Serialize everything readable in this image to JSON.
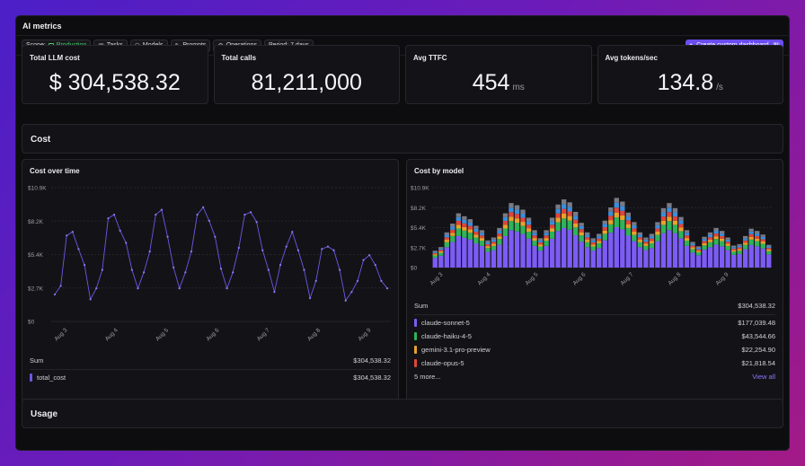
{
  "window": {
    "title": "AI metrics"
  },
  "toolbar": {
    "scope_label": "Scope:",
    "scope_value": "Production",
    "tasks": "Tasks",
    "models": "Models",
    "prompts": "Prompts",
    "operations": "Operations",
    "period": "Period: 7 days",
    "create_button": "Create custom dashboard",
    "create_shortcut": "N"
  },
  "stats": [
    {
      "label": "Total LLM cost",
      "value": "$ 304,538.32",
      "unit": ""
    },
    {
      "label": "Total calls",
      "value": "81,211,000",
      "unit": ""
    },
    {
      "label": "Avg TTFC",
      "value": "454",
      "unit": "ms"
    },
    {
      "label": "Avg tokens/sec",
      "value": "134.8",
      "unit": "/s"
    }
  ],
  "sections": {
    "cost": "Cost",
    "usage": "Usage"
  },
  "colors": {
    "sonnet": "#7c5cf5",
    "haiku": "#2fb35a",
    "gemini": "#e8a22b",
    "opus": "#e0453b",
    "other1": "#3a8ddc",
    "other2": "#7a7a86",
    "line": "#6b58e6"
  },
  "cost_over_time": {
    "title": "Cost over time",
    "sum_label": "Sum",
    "sum_value": "$304,538.32",
    "legend": [
      {
        "name": "total_cost",
        "value": "$304,538.32"
      }
    ]
  },
  "cost_by_model": {
    "title": "Cost by model",
    "sum_label": "Sum",
    "sum_value": "$304,538.32",
    "legend": [
      {
        "name": "claude-sonnet-5",
        "value": "$177,039.48",
        "color": "#7c5cf5"
      },
      {
        "name": "claude-haiku-4-5",
        "value": "$43,544.66",
        "color": "#2fb35a"
      },
      {
        "name": "gemini-3.1-pro-preview",
        "value": "$22,254.90",
        "color": "#e8a22b"
      },
      {
        "name": "claude-opus-5",
        "value": "$21,818.54",
        "color": "#e0453b"
      }
    ],
    "more": "5 more...",
    "view_all": "View all"
  },
  "chart_data": [
    {
      "type": "line",
      "title": "Cost over time",
      "yticks": [
        "$0",
        "$2.7K",
        "$5.4K",
        "$8.2K",
        "$10.9K"
      ],
      "ylim": [
        0,
        10900
      ],
      "xticks": [
        "Aug 3",
        "Aug 4",
        "Aug 5",
        "Aug 6",
        "Aug 7",
        "Aug 8",
        "Aug 9"
      ],
      "series": [
        {
          "name": "total_cost",
          "values": [
            2200,
            2900,
            7000,
            7300,
            5900,
            4600,
            1800,
            2700,
            4200,
            8400,
            8700,
            7400,
            6400,
            4200,
            2700,
            4000,
            5700,
            8700,
            9100,
            6900,
            4400,
            2700,
            4000,
            5700,
            8700,
            9300,
            8200,
            6900,
            4300,
            2700,
            4000,
            6000,
            8700,
            8900,
            8100,
            5800,
            4200,
            2400,
            4600,
            6100,
            7300,
            5800,
            4200,
            1900,
            3300,
            5900,
            6100,
            5800,
            4200,
            1700,
            2400,
            3300,
            5000,
            5400,
            4600,
            3300,
            2700
          ]
        }
      ],
      "grid": true
    },
    {
      "type": "bar",
      "title": "Cost by model",
      "stacked": true,
      "yticks": [
        "$0",
        "$2.7K",
        "$5.4K",
        "$8.2K",
        "$10.9K"
      ],
      "ylim": [
        0,
        10900
      ],
      "xticks": [
        "Aug 3",
        "Aug 4",
        "Aug 5",
        "Aug 6",
        "Aug 7",
        "Aug 8",
        "Aug 9"
      ],
      "totals": [
        2300,
        2800,
        4800,
        6000,
        7400,
        7000,
        6600,
        5700,
        5100,
        3700,
        4100,
        5400,
        7400,
        8800,
        8500,
        7900,
        6800,
        5100,
        4000,
        5100,
        6800,
        8600,
        9300,
        8900,
        7600,
        6100,
        4800,
        4000,
        4600,
        6400,
        8200,
        9500,
        9000,
        7500,
        6200,
        4800,
        4100,
        4600,
        6200,
        8100,
        8800,
        8100,
        6900,
        5100,
        3500,
        2900,
        4200,
        4800,
        5400,
        5000,
        4100,
        3000,
        3200,
        4300,
        5300,
        5000,
        4500,
        3100
      ],
      "shares": {
        "sonnet": 0.58,
        "haiku": 0.14,
        "gemini": 0.07,
        "opus": 0.07,
        "other1": 0.07,
        "other2": 0.07
      }
    }
  ]
}
